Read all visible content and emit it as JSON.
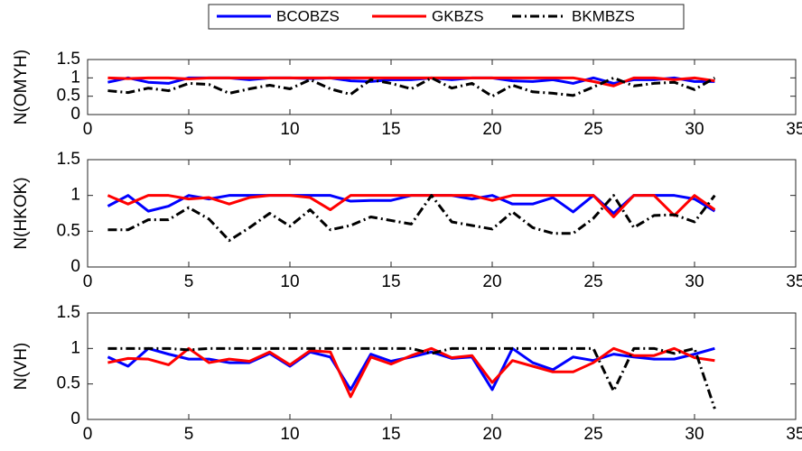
{
  "chart_data": [
    {
      "type": "line",
      "ylabel": "N(OMYH)",
      "x": [
        1,
        2,
        3,
        4,
        5,
        6,
        7,
        8,
        9,
        10,
        11,
        12,
        13,
        14,
        15,
        16,
        17,
        18,
        19,
        20,
        21,
        22,
        23,
        24,
        25,
        26,
        27,
        28,
        29,
        30,
        31
      ],
      "series": [
        {
          "name": "BCOBZS",
          "color": "#0000ff",
          "linestyle": "solid",
          "values": [
            0.88,
            1,
            0.88,
            0.85,
            1,
            1,
            1,
            0.95,
            1,
            1,
            0.98,
            1,
            0.92,
            0.9,
            0.95,
            0.95,
            1,
            0.95,
            1,
            1,
            0.92,
            0.9,
            0.95,
            0.85,
            1,
            0.85,
            0.95,
            0.95,
            1,
            0.9,
            0.9
          ]
        },
        {
          "name": "GKBZS",
          "color": "#ff0000",
          "linestyle": "solid",
          "values": [
            1,
            0.98,
            1,
            1,
            0.97,
            1,
            1,
            1,
            1,
            1,
            1,
            1,
            1,
            1,
            1,
            1,
            1,
            1,
            1,
            1,
            1,
            1,
            1,
            1,
            0.9,
            0.78,
            1,
            1,
            0.95,
            1,
            0.92
          ]
        },
        {
          "name": "BKMBZS",
          "color": "#000000",
          "linestyle": "dashdot",
          "values": [
            0.65,
            0.6,
            0.72,
            0.65,
            0.85,
            0.82,
            0.58,
            0.7,
            0.8,
            0.7,
            0.95,
            0.7,
            0.55,
            0.95,
            0.85,
            0.7,
            1,
            0.72,
            0.85,
            0.5,
            0.8,
            0.62,
            0.58,
            0.52,
            0.75,
            1,
            0.78,
            0.85,
            0.88,
            0.68,
            1
          ]
        }
      ],
      "xlim": [
        0,
        35
      ],
      "xticks": [
        0,
        5,
        10,
        15,
        20,
        25,
        30,
        35
      ],
      "ylim": [
        0,
        1.5
      ],
      "yticks": [
        0,
        0.5,
        1,
        1.5
      ]
    },
    {
      "type": "line",
      "ylabel": "N(HKOK)",
      "x": [
        1,
        2,
        3,
        4,
        5,
        6,
        7,
        8,
        9,
        10,
        11,
        12,
        13,
        14,
        15,
        16,
        17,
        18,
        19,
        20,
        21,
        22,
        23,
        24,
        25,
        26,
        27,
        28,
        29,
        30,
        31
      ],
      "series": [
        {
          "name": "BCOBZS",
          "color": "#0000ff",
          "linestyle": "solid",
          "values": [
            0.85,
            1,
            0.78,
            0.85,
            1,
            0.95,
            1,
            1,
            1,
            1,
            1,
            1,
            0.92,
            0.93,
            0.93,
            1,
            1,
            1,
            0.95,
            1,
            0.88,
            0.88,
            0.97,
            0.77,
            1,
            0.75,
            1,
            1,
            1,
            0.95,
            0.78
          ]
        },
        {
          "name": "GKBZS",
          "color": "#ff0000",
          "linestyle": "solid",
          "values": [
            1,
            0.88,
            1,
            1,
            0.95,
            0.97,
            0.88,
            0.97,
            1,
            1,
            0.97,
            0.8,
            1,
            1,
            1,
            1,
            1,
            1,
            1,
            0.93,
            1,
            1,
            1,
            1,
            1,
            0.7,
            1,
            1,
            0.72,
            1,
            0.8
          ]
        },
        {
          "name": "BKMBZS",
          "color": "#000000",
          "linestyle": "dashdot",
          "values": [
            0.52,
            0.52,
            0.66,
            0.66,
            0.83,
            0.67,
            0.37,
            0.55,
            0.75,
            0.57,
            0.8,
            0.52,
            0.58,
            0.7,
            0.65,
            0.6,
            1,
            0.63,
            0.58,
            0.53,
            0.77,
            0.55,
            0.47,
            0.47,
            0.68,
            1,
            0.55,
            0.72,
            0.73,
            0.63,
            1
          ]
        }
      ],
      "xlim": [
        0,
        35
      ],
      "xticks": [
        0,
        5,
        10,
        15,
        20,
        25,
        30,
        35
      ],
      "ylim": [
        0,
        1.5
      ],
      "yticks": [
        0,
        0.5,
        1,
        1.5
      ]
    },
    {
      "type": "line",
      "ylabel": "N(VH)",
      "x": [
        1,
        2,
        3,
        4,
        5,
        6,
        7,
        8,
        9,
        10,
        11,
        12,
        13,
        14,
        15,
        16,
        17,
        18,
        19,
        20,
        21,
        22,
        23,
        24,
        25,
        26,
        27,
        28,
        29,
        30,
        31
      ],
      "series": [
        {
          "name": "BCOBZS",
          "color": "#0000ff",
          "linestyle": "solid",
          "values": [
            0.88,
            0.75,
            1,
            0.92,
            0.85,
            0.85,
            0.8,
            0.8,
            0.93,
            0.75,
            0.95,
            0.88,
            0.42,
            0.92,
            0.82,
            0.88,
            0.95,
            0.86,
            0.88,
            0.42,
            1,
            0.8,
            0.7,
            0.88,
            0.83,
            0.92,
            0.88,
            0.85,
            0.85,
            0.92,
            1
          ]
        },
        {
          "name": "GKBZS",
          "color": "#ff0000",
          "linestyle": "solid",
          "values": [
            0.8,
            0.86,
            0.85,
            0.77,
            1,
            0.8,
            0.85,
            0.82,
            0.95,
            0.77,
            0.97,
            0.95,
            0.32,
            0.88,
            0.78,
            0.9,
            1,
            0.87,
            0.9,
            0.52,
            0.83,
            0.75,
            0.67,
            0.67,
            0.8,
            1,
            0.9,
            0.9,
            1,
            0.87,
            0.83
          ]
        },
        {
          "name": "BKMBZS",
          "color": "#000000",
          "linestyle": "dashdot",
          "values": [
            1,
            1,
            1,
            1,
            0.98,
            1,
            1,
            1,
            1,
            1,
            1,
            1,
            1,
            1,
            1,
            1,
            0.93,
            1,
            1,
            1,
            1,
            1,
            1,
            1,
            1,
            0.4,
            1,
            1,
            0.93,
            1,
            0.15
          ]
        }
      ],
      "xlim": [
        0,
        35
      ],
      "xticks": [
        0,
        5,
        10,
        15,
        20,
        25,
        30,
        35
      ],
      "ylim": [
        0,
        1.5
      ],
      "yticks": [
        0,
        0.5,
        1,
        1.5
      ]
    }
  ]
}
